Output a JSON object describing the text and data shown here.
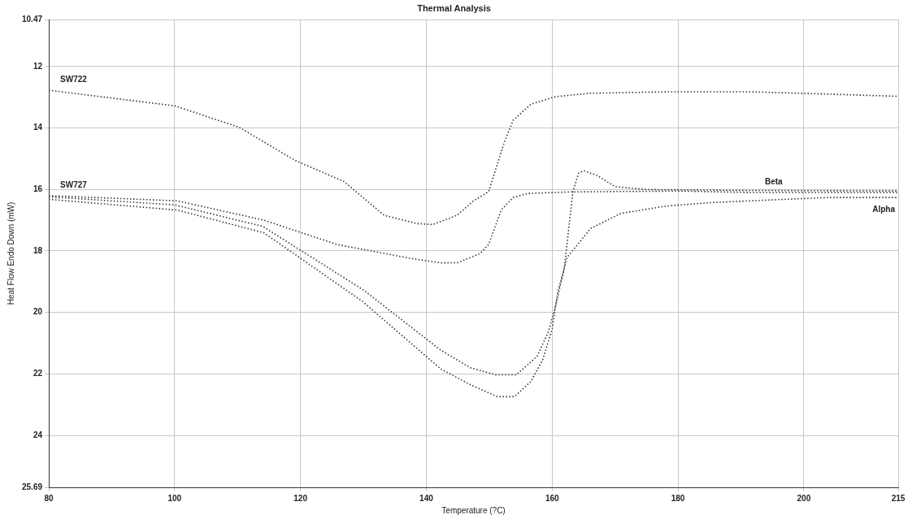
{
  "chart_data": {
    "type": "line",
    "title": "Thermal Analysis",
    "xlabel": "Temperature (?C)",
    "ylabel": "Heat Flow Endo Down (mW)",
    "xlim": [
      80,
      215
    ],
    "xticks": [
      80,
      100,
      120,
      140,
      160,
      180,
      200,
      215
    ],
    "ylim": [
      25.69,
      10.47
    ],
    "yticks": [
      10.47,
      12,
      14,
      16,
      18,
      20,
      22,
      24,
      25.69
    ],
    "grid": true,
    "marker": "none",
    "line_style": "dotted",
    "series": [
      {
        "color": "#333333",
        "x": [
          80,
          100,
          110.2,
          119.2,
          126.9,
          133.3,
          138.5,
          141,
          144.9,
          147.5,
          149.9,
          152.4,
          153.8,
          156.6,
          160.5,
          166.1,
          179,
          191.3,
          199.4,
          215
        ],
        "values": [
          12.77,
          13.28,
          13.97,
          15.06,
          15.74,
          16.84,
          17.11,
          17.14,
          16.84,
          16.37,
          16.07,
          14.46,
          13.75,
          13.23,
          12.98,
          12.87,
          12.82,
          12.82,
          12.87,
          12.97
        ]
      },
      {
        "color": "#333333",
        "x": [
          80,
          100.4,
          114.2,
          125.8,
          137.2,
          142.3,
          145,
          148.5,
          149.9,
          151.9,
          153.8,
          156.1,
          162.9,
          180,
          192,
          215
        ],
        "values": [
          16.2,
          16.37,
          17.0,
          17.79,
          18.23,
          18.39,
          18.38,
          18.09,
          17.79,
          16.67,
          16.26,
          16.13,
          16.08,
          16.05,
          16.1,
          16.1
        ]
      },
      {
        "color": "#333333",
        "x": [
          80,
          100,
          114,
          130,
          142.3,
          147,
          151,
          154.3,
          157.6,
          159.4,
          160.5,
          161.9,
          163.3,
          164.2,
          165,
          167.2,
          170,
          175,
          190,
          215
        ],
        "values": [
          16.24,
          16.5,
          17.2,
          19.27,
          21.23,
          21.8,
          22.03,
          22.03,
          21.43,
          20.63,
          19.81,
          18.6,
          16.07,
          15.47,
          15.39,
          15.55,
          15.91,
          16.0,
          16.03,
          16.05
        ]
      },
      {
        "color": "#333333",
        "x": [
          80,
          100.4,
          114.2,
          129.9,
          142.3,
          147.1,
          151.3,
          154,
          156.6,
          158.5,
          160,
          160.9,
          162.4,
          163.3,
          166.1,
          170.9,
          178.1,
          185.1,
          194.7,
          204.2,
          215
        ],
        "values": [
          16.32,
          16.67,
          17.41,
          19.65,
          21.84,
          22.36,
          22.74,
          22.74,
          22.25,
          21.54,
          20.53,
          19.32,
          18.2,
          17.98,
          17.27,
          16.78,
          16.54,
          16.43,
          16.34,
          16.26,
          16.26
        ]
      }
    ],
    "annotations": [
      {
        "text": "SW722",
        "x": 80,
        "y": 12.77
      },
      {
        "text": "SW727",
        "x": 80,
        "y": 16.2
      },
      {
        "text": "Beta",
        "x": 192,
        "y": 16.1
      },
      {
        "text": "Alpha",
        "x": 215,
        "y": 16.26
      }
    ]
  }
}
